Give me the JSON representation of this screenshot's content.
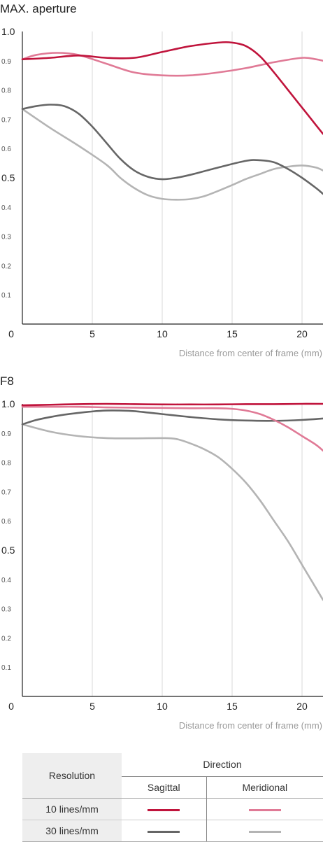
{
  "legend": {
    "resolution_header": "Resolution",
    "direction_header": "Direction",
    "sagittal_label": "Sagittal",
    "meridional_label": "Meridional",
    "rows": [
      {
        "label": "10 lines/mm",
        "sagittal_color": "#c0143c",
        "meridional_color": "#e07a96"
      },
      {
        "label": "30 lines/mm",
        "sagittal_color": "#666666",
        "meridional_color": "#b4b4b4"
      }
    ]
  },
  "chart_data": [
    {
      "type": "line",
      "title": "MAX. aperture",
      "xlabel": "Distance from center of frame (mm)",
      "ylabel": "",
      "xlim": [
        0,
        21.5
      ],
      "ylim": [
        0,
        1.0
      ],
      "x_ticks": [
        "0",
        "5",
        "10",
        "15",
        "20"
      ],
      "y_ticks": [
        "1.0",
        "0.9",
        "0.8",
        "0.7",
        "0.6",
        "0.5",
        "0.4",
        "0.3",
        "0.2",
        "0.1"
      ],
      "grid": true,
      "series": [
        {
          "color": "#c0143c",
          "x": [
            0,
            2,
            4,
            6,
            8,
            10,
            12,
            14,
            15,
            16,
            17,
            18,
            19,
            20,
            21,
            21.5
          ],
          "y": [
            0.905,
            0.91,
            0.918,
            0.91,
            0.91,
            0.93,
            0.95,
            0.962,
            0.962,
            0.95,
            0.915,
            0.86,
            0.8,
            0.74,
            0.68,
            0.65
          ]
        },
        {
          "color": "#e07a96",
          "x": [
            0,
            1,
            2.5,
            4,
            6,
            8,
            10,
            12,
            14,
            16,
            18,
            20,
            21,
            21.5
          ],
          "y": [
            0.905,
            0.92,
            0.927,
            0.92,
            0.89,
            0.86,
            0.85,
            0.85,
            0.86,
            0.875,
            0.895,
            0.91,
            0.905,
            0.9
          ]
        },
        {
          "color": "#666666",
          "x": [
            0,
            1,
            2,
            3,
            4,
            5,
            6,
            7,
            8,
            9,
            10,
            11,
            12,
            14,
            16,
            17,
            18,
            19,
            20,
            21,
            21.5
          ],
          "y": [
            0.735,
            0.745,
            0.75,
            0.745,
            0.72,
            0.675,
            0.62,
            0.565,
            0.525,
            0.503,
            0.495,
            0.5,
            0.51,
            0.535,
            0.558,
            0.56,
            0.553,
            0.53,
            0.5,
            0.465,
            0.445
          ]
        },
        {
          "color": "#b4b4b4",
          "x": [
            0,
            2,
            4,
            6,
            7,
            8,
            9,
            10,
            11,
            12,
            13,
            14,
            15,
            16,
            17,
            18,
            19,
            20,
            21,
            21.5
          ],
          "y": [
            0.735,
            0.67,
            0.61,
            0.545,
            0.5,
            0.465,
            0.44,
            0.428,
            0.425,
            0.427,
            0.437,
            0.455,
            0.475,
            0.496,
            0.513,
            0.53,
            0.538,
            0.542,
            0.535,
            0.525
          ]
        }
      ]
    },
    {
      "type": "line",
      "title": "F8",
      "xlabel": "Distance from center of frame (mm)",
      "ylabel": "",
      "xlim": [
        0,
        21.5
      ],
      "ylim": [
        0,
        1.0
      ],
      "x_ticks": [
        "0",
        "5",
        "10",
        "15",
        "20"
      ],
      "y_ticks": [
        "1.0",
        "0.9",
        "0.8",
        "0.7",
        "0.6",
        "0.5",
        "0.4",
        "0.3",
        "0.2",
        "0.1"
      ],
      "grid": true,
      "series": [
        {
          "color": "#c0143c",
          "x": [
            0,
            2,
            4,
            6,
            8,
            10,
            12,
            14,
            16,
            18,
            20,
            21.5
          ],
          "y": [
            0.995,
            0.997,
            0.999,
            1.0,
            0.999,
            0.998,
            0.998,
            0.998,
            0.999,
            0.999,
            1.0,
            1.0
          ]
        },
        {
          "color": "#e07a96",
          "x": [
            0,
            2,
            4,
            6,
            8,
            10,
            12,
            14,
            15,
            16,
            17,
            18,
            19,
            20,
            21,
            21.5
          ],
          "y": [
            0.99,
            0.99,
            0.99,
            0.988,
            0.987,
            0.986,
            0.985,
            0.985,
            0.983,
            0.977,
            0.965,
            0.945,
            0.92,
            0.89,
            0.86,
            0.84
          ]
        },
        {
          "color": "#666666",
          "x": [
            0,
            1,
            2,
            3,
            4,
            5,
            6,
            7,
            8,
            10,
            12,
            14,
            16,
            18,
            20,
            21.5
          ],
          "y": [
            0.93,
            0.945,
            0.955,
            0.963,
            0.969,
            0.974,
            0.977,
            0.977,
            0.975,
            0.965,
            0.955,
            0.947,
            0.943,
            0.942,
            0.945,
            0.95
          ]
        },
        {
          "color": "#b4b4b4",
          "x": [
            0,
            2,
            4,
            6,
            8,
            10,
            11,
            12,
            13,
            14,
            15,
            16,
            17,
            18,
            19,
            20,
            21,
            21.5
          ],
          "y": [
            0.93,
            0.905,
            0.89,
            0.883,
            0.882,
            0.883,
            0.88,
            0.865,
            0.845,
            0.818,
            0.778,
            0.73,
            0.67,
            0.6,
            0.53,
            0.45,
            0.37,
            0.33
          ]
        }
      ]
    }
  ]
}
